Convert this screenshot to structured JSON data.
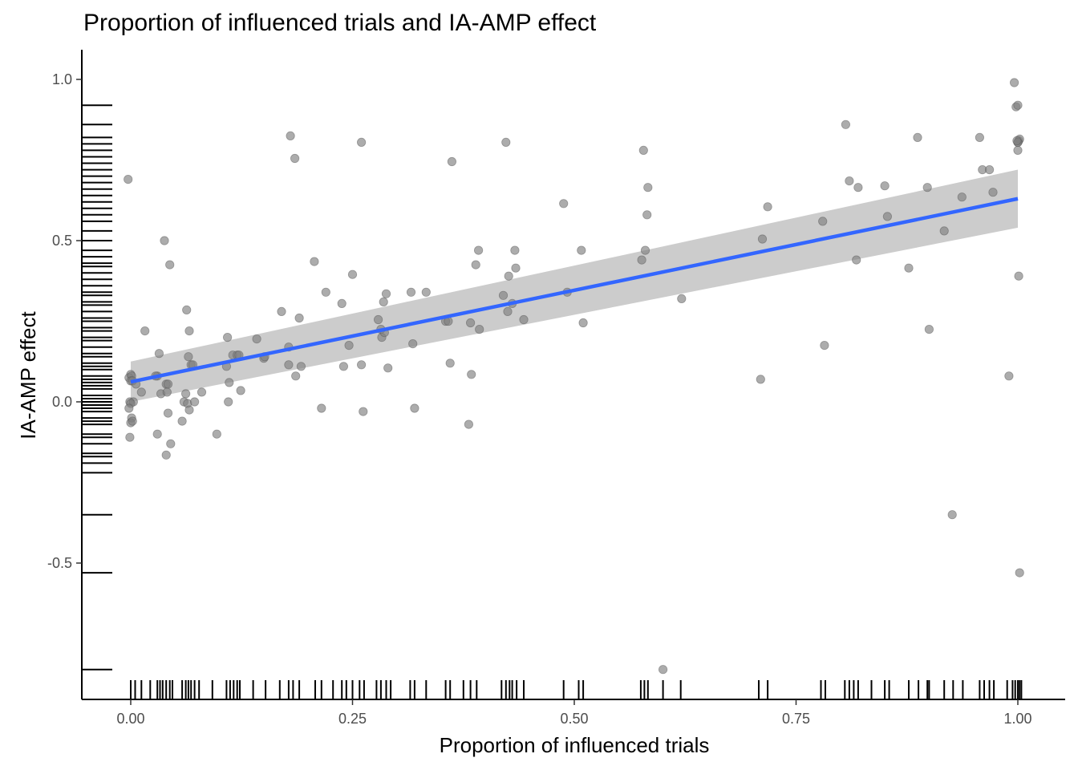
{
  "chart_data": {
    "type": "scatter",
    "title": "Proportion of influenced trials and IA-AMP effect",
    "xlabel": "Proportion of influenced trials",
    "ylabel": "IA-AMP effect",
    "xlim": [
      -0.05,
      1.05
    ],
    "ylim": [
      -0.92,
      1.09
    ],
    "x_ticks": [
      0.0,
      0.25,
      0.5,
      0.75,
      1.0
    ],
    "x_tick_labels": [
      "0.00",
      "0.25",
      "0.50",
      "0.75",
      "1.00"
    ],
    "y_ticks": [
      -0.5,
      0.0,
      0.5,
      1.0
    ],
    "y_tick_labels": [
      "-0.5",
      "0.0",
      "0.5",
      "1.0"
    ],
    "grid": false,
    "rug": true,
    "point_color": "#808080",
    "line_color": "#3366ff",
    "band_color": "#cccccc",
    "trend": {
      "method": "linear",
      "x": [
        0.0,
        1.0
      ],
      "y": [
        0.062,
        0.63
      ],
      "ci_lower": [
        0.0,
        0.54
      ],
      "ci_upper": [
        0.125,
        0.72
      ]
    },
    "points": {
      "x": [
        -0.003,
        0.0,
        -0.002,
        0.001,
        0.0,
        0.002,
        -0.001,
        0.003,
        0.0,
        -0.002,
        0.001,
        -0.001,
        0.0,
        0.002,
        0.006,
        0.012,
        0.016,
        0.03,
        0.032,
        0.034,
        0.038,
        0.04,
        0.041,
        0.042,
        0.044,
        0.045,
        0.03,
        0.028,
        0.04,
        0.042,
        0.062,
        0.063,
        0.065,
        0.066,
        0.068,
        0.07,
        0.06,
        0.058,
        0.064,
        0.066,
        0.072,
        0.08,
        0.097,
        0.109,
        0.108,
        0.115,
        0.12,
        0.122,
        0.124,
        0.11,
        0.111,
        0.142,
        0.15,
        0.151,
        0.17,
        0.178,
        0.18,
        0.185,
        0.19,
        0.192,
        0.186,
        0.178,
        0.207,
        0.215,
        0.22,
        0.238,
        0.24,
        0.246,
        0.25,
        0.26,
        0.26,
        0.262,
        0.279,
        0.282,
        0.283,
        0.285,
        0.288,
        0.29,
        0.286,
        0.316,
        0.318,
        0.32,
        0.333,
        0.355,
        0.358,
        0.362,
        0.36,
        0.381,
        0.384,
        0.389,
        0.392,
        0.393,
        0.383,
        0.42,
        0.423,
        0.426,
        0.425,
        0.43,
        0.433,
        0.434,
        0.443,
        0.488,
        0.492,
        0.508,
        0.51,
        0.576,
        0.578,
        0.58,
        0.583,
        0.582,
        0.6,
        0.621,
        0.71,
        0.712,
        0.718,
        0.78,
        0.782,
        0.806,
        0.81,
        0.818,
        0.82,
        0.85,
        0.853,
        0.877,
        0.887,
        0.898,
        0.9,
        0.917,
        0.926,
        0.937,
        0.957,
        0.96,
        0.968,
        0.972,
        0.99,
        0.996,
        0.998,
        1.0,
        1.001,
        1.002,
        1.0,
        1.0,
        1.001,
        1.002,
        1.0,
        0.999
      ],
      "y": [
        0.69,
        0.085,
        0.075,
        0.08,
        0.065,
        0.065,
        0.0,
        0.0,
        -0.005,
        -0.02,
        -0.05,
        -0.11,
        -0.065,
        -0.06,
        0.055,
        0.03,
        0.22,
        0.08,
        0.15,
        0.025,
        0.5,
        0.055,
        0.03,
        -0.035,
        0.425,
        -0.13,
        -0.1,
        0.08,
        -0.165,
        0.055,
        0.025,
        0.285,
        0.14,
        0.22,
        0.115,
        0.115,
        0.0,
        -0.06,
        -0.005,
        -0.025,
        0.0,
        0.03,
        -0.1,
        0.2,
        0.11,
        0.145,
        0.145,
        0.145,
        0.035,
        0.0,
        0.06,
        0.195,
        0.135,
        0.14,
        0.28,
        0.17,
        0.825,
        0.755,
        0.26,
        0.11,
        0.08,
        0.115,
        0.435,
        -0.02,
        0.34,
        0.305,
        0.11,
        0.175,
        0.395,
        0.805,
        0.115,
        -0.03,
        0.255,
        0.225,
        0.2,
        0.31,
        0.335,
        0.105,
        0.215,
        0.34,
        0.18,
        -0.02,
        0.34,
        0.25,
        0.25,
        0.745,
        0.12,
        -0.07,
        0.085,
        0.425,
        0.47,
        0.225,
        0.245,
        0.33,
        0.805,
        0.39,
        0.28,
        0.305,
        0.47,
        0.415,
        0.255,
        0.615,
        0.34,
        0.47,
        0.245,
        0.44,
        0.78,
        0.47,
        0.665,
        0.58,
        -0.83,
        0.32,
        0.07,
        0.505,
        0.605,
        0.56,
        0.175,
        0.86,
        0.685,
        0.44,
        0.665,
        0.67,
        0.575,
        0.415,
        0.82,
        0.665,
        0.225,
        0.53,
        -0.35,
        0.635,
        0.82,
        0.72,
        0.72,
        0.65,
        0.08,
        0.99,
        0.915,
        0.92,
        0.81,
        0.815,
        0.805,
        0.78,
        0.39,
        -0.53,
        0.805,
        0.81
      ]
    },
    "rug_x": [
      0.0,
      0.005,
      0.012,
      0.022,
      0.03,
      0.033,
      0.036,
      0.04,
      0.044,
      0.047,
      0.058,
      0.062,
      0.065,
      0.068,
      0.072,
      0.077,
      0.092,
      0.108,
      0.112,
      0.116,
      0.12,
      0.123,
      0.138,
      0.152,
      0.168,
      0.178,
      0.183,
      0.19,
      0.208,
      0.215,
      0.228,
      0.238,
      0.243,
      0.25,
      0.258,
      0.263,
      0.277,
      0.282,
      0.288,
      0.293,
      0.315,
      0.32,
      0.333,
      0.355,
      0.36,
      0.375,
      0.383,
      0.39,
      0.418,
      0.423,
      0.427,
      0.43,
      0.435,
      0.443,
      0.488,
      0.505,
      0.51,
      0.575,
      0.579,
      0.583,
      0.6,
      0.62,
      0.708,
      0.718,
      0.778,
      0.783,
      0.805,
      0.81,
      0.815,
      0.82,
      0.835,
      0.85,
      0.855,
      0.877,
      0.888,
      0.898,
      0.9,
      0.917,
      0.927,
      0.938,
      0.957,
      0.962,
      0.968,
      0.973,
      0.988,
      0.994,
      0.997,
      1.0,
      1.002,
      1.004
    ],
    "rug_y": [
      0.92,
      0.86,
      0.82,
      0.8,
      0.78,
      0.76,
      0.74,
      0.72,
      0.7,
      0.68,
      0.66,
      0.64,
      0.62,
      0.6,
      0.58,
      0.56,
      0.53,
      0.5,
      0.47,
      0.45,
      0.43,
      0.42,
      0.4,
      0.38,
      0.36,
      0.34,
      0.33,
      0.31,
      0.3,
      0.28,
      0.26,
      0.25,
      0.23,
      0.22,
      0.2,
      0.19,
      0.17,
      0.15,
      0.14,
      0.12,
      0.11,
      0.1,
      0.08,
      0.07,
      0.06,
      0.05,
      0.04,
      0.02,
      0.01,
      0.0,
      -0.01,
      -0.02,
      -0.03,
      -0.05,
      -0.06,
      -0.07,
      -0.1,
      -0.11,
      -0.13,
      -0.16,
      -0.17,
      -0.19,
      -0.22,
      -0.35,
      -0.53,
      -0.83
    ]
  }
}
